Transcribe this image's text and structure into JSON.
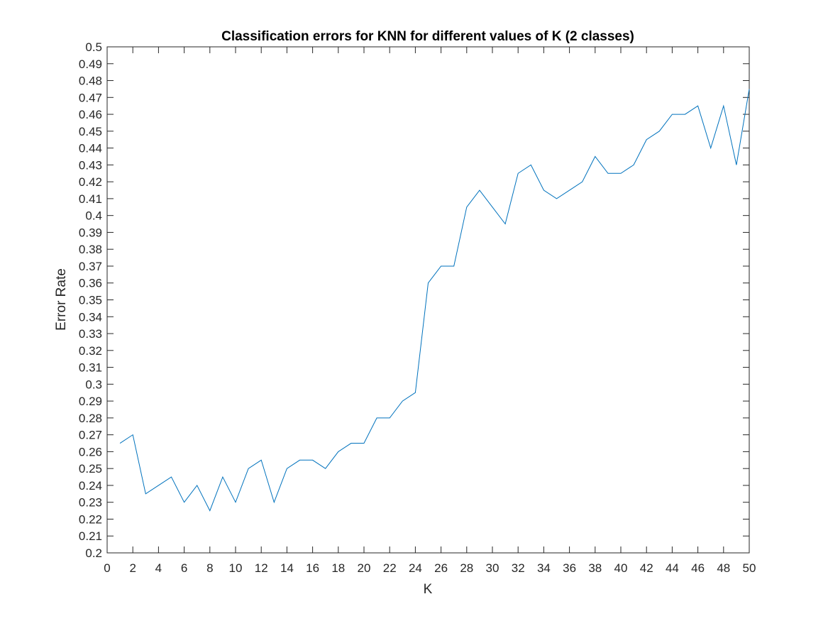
{
  "chart_data": {
    "type": "line",
    "title": "Classification errors for KNN for different values of K (2 classes)",
    "xlabel": "K",
    "ylabel": "Error Rate",
    "xlim": [
      0,
      50
    ],
    "ylim": [
      0.2,
      0.5
    ],
    "xticks": [
      "0",
      "2",
      "4",
      "6",
      "8",
      "10",
      "12",
      "14",
      "16",
      "18",
      "20",
      "22",
      "24",
      "26",
      "28",
      "30",
      "32",
      "34",
      "36",
      "38",
      "40",
      "42",
      "44",
      "46",
      "48",
      "50"
    ],
    "yticks": [
      "0.2",
      "0.21",
      "0.22",
      "0.23",
      "0.24",
      "0.25",
      "0.26",
      "0.27",
      "0.28",
      "0.29",
      "0.3",
      "0.31",
      "0.32",
      "0.33",
      "0.34",
      "0.35",
      "0.36",
      "0.37",
      "0.38",
      "0.39",
      "0.4",
      "0.41",
      "0.42",
      "0.43",
      "0.44",
      "0.45",
      "0.46",
      "0.47",
      "0.48",
      "0.49",
      "0.5"
    ],
    "grid": false,
    "series": [
      {
        "color": "#0072bd",
        "x": [
          1,
          2,
          3,
          4,
          5,
          6,
          7,
          8,
          9,
          10,
          11,
          12,
          13,
          14,
          15,
          16,
          17,
          18,
          19,
          20,
          21,
          22,
          23,
          24,
          25,
          26,
          27,
          28,
          29,
          30,
          31,
          32,
          33,
          34,
          35,
          36,
          37,
          38,
          39,
          40,
          41,
          42,
          43,
          44,
          45,
          46,
          47,
          48,
          49,
          50
        ],
        "y": [
          0.265,
          0.27,
          0.235,
          0.24,
          0.245,
          0.23,
          0.24,
          0.225,
          0.245,
          0.23,
          0.25,
          0.255,
          0.23,
          0.25,
          0.255,
          0.255,
          0.25,
          0.26,
          0.265,
          0.265,
          0.28,
          0.28,
          0.29,
          0.295,
          0.36,
          0.37,
          0.37,
          0.405,
          0.415,
          0.405,
          0.395,
          0.425,
          0.43,
          0.415,
          0.41,
          0.415,
          0.42,
          0.435,
          0.425,
          0.425,
          0.43,
          0.445,
          0.45,
          0.46,
          0.46,
          0.465,
          0.44,
          0.465,
          0.43,
          0.475
        ]
      }
    ]
  }
}
